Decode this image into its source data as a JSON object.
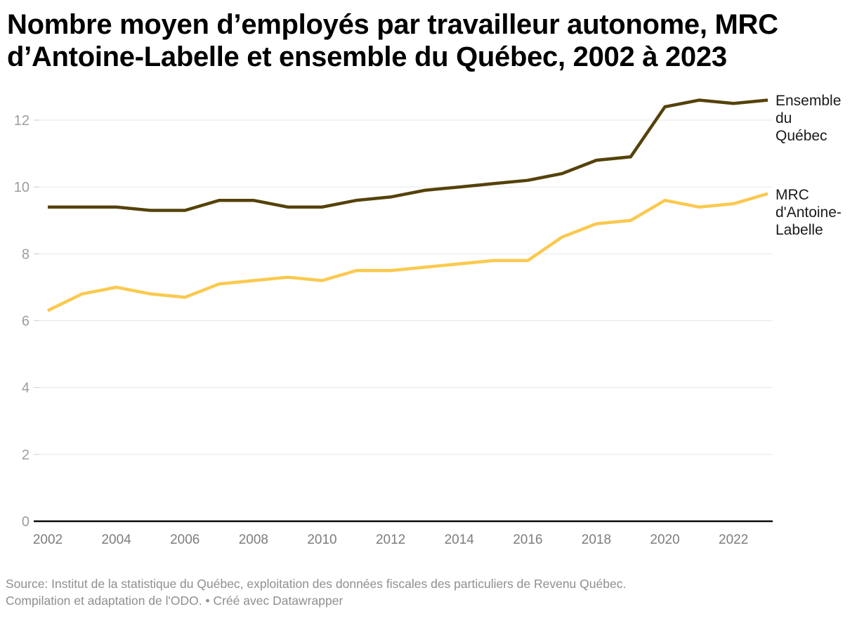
{
  "title": {
    "line1": "Nombre moyen d’employés par travailleur autonome, MRC",
    "line2": "d’Antoine-Labelle et ensemble du Québec, 2002 à 2023"
  },
  "source": {
    "line1": "Source: Institut de la statistique du Québec, exploitation des données fiscales des particuliers de Revenu Québec.",
    "line2": "Compilation et adaptation de l'ODO. • Créé avec Datawrapper"
  },
  "colors": {
    "ensemble_line": "#55420a",
    "mrc_line": "#fbc94f",
    "grid": "#e6e6e6",
    "axis_tick": "#cfcfcf",
    "baseline": "#0b0b0b",
    "y_tick_text": "#9d9d9d",
    "x_tick_text": "#7d7d7d",
    "legend_text": "#1a1a1a",
    "source_text": "#8f8f8f",
    "title_text": "#000000"
  },
  "chart_data": {
    "type": "line",
    "title": "Nombre moyen d’employés par travailleur autonome, MRC d’Antoine-Labelle et ensemble du Québec, 2002 à 2023",
    "x": [
      2002,
      2003,
      2004,
      2005,
      2006,
      2007,
      2008,
      2009,
      2010,
      2011,
      2012,
      2013,
      2014,
      2015,
      2016,
      2017,
      2018,
      2019,
      2020,
      2021,
      2022,
      2023
    ],
    "x_tick_labels": [
      "2002",
      "2004",
      "2006",
      "2008",
      "2010",
      "2012",
      "2014",
      "2016",
      "2018",
      "2020",
      "2022"
    ],
    "y_ticks": [
      0,
      2,
      4,
      6,
      8,
      10,
      12
    ],
    "ylim": [
      0,
      13
    ],
    "xlabel": "",
    "ylabel": "",
    "grid": "horizontal gridlines on, black zero baseline",
    "legend_position": "right of line ends",
    "series": [
      {
        "name": "Ensemble du Québec",
        "label_lines": [
          "Ensemble",
          "du",
          "Québec"
        ],
        "color": "#55420a",
        "values": [
          9.4,
          9.4,
          9.4,
          9.3,
          9.3,
          9.6,
          9.6,
          9.4,
          9.4,
          9.6,
          9.7,
          9.9,
          10.0,
          10.1,
          10.2,
          10.4,
          10.8,
          10.9,
          12.4,
          12.6,
          12.5,
          12.6
        ]
      },
      {
        "name": "MRC d'Antoine-Labelle",
        "label_lines": [
          "MRC",
          "d'Antoine-",
          "Labelle"
        ],
        "color": "#fbc94f",
        "values": [
          6.3,
          6.8,
          7.0,
          6.8,
          6.7,
          7.1,
          7.2,
          7.3,
          7.2,
          7.5,
          7.5,
          7.6,
          7.7,
          7.8,
          7.8,
          8.5,
          8.9,
          9.0,
          9.6,
          9.4,
          9.5,
          9.8
        ]
      }
    ]
  }
}
